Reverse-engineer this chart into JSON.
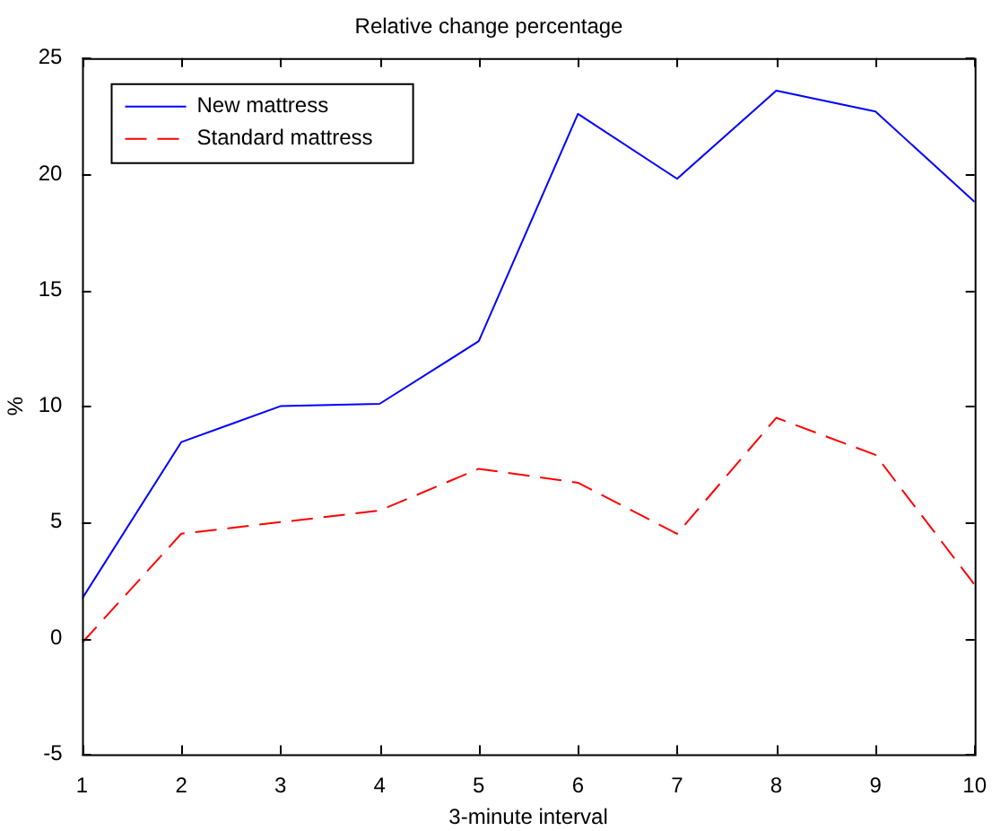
{
  "chart_data": {
    "type": "line",
    "title": "Relative change percentage",
    "xlabel": "3-minute interval",
    "ylabel": "%",
    "x": [
      1,
      2,
      3,
      4,
      5,
      6,
      7,
      8,
      9,
      10
    ],
    "series": [
      {
        "name": "New mattress",
        "color": "#0000ff",
        "line_style": "solid",
        "values": [
          1.7,
          8.45,
          10.0,
          10.1,
          12.8,
          22.6,
          19.8,
          23.6,
          22.7,
          18.8
        ]
      },
      {
        "name": "Standard mattress",
        "color": "#ff0000",
        "line_style": "dashed",
        "values": [
          -0.2,
          4.5,
          5.0,
          5.5,
          7.3,
          6.7,
          4.5,
          9.5,
          7.9,
          2.3
        ]
      }
    ],
    "xlim": [
      1,
      10
    ],
    "xticks": [
      1,
      2,
      3,
      4,
      5,
      6,
      7,
      8,
      9,
      10
    ],
    "ylim": [
      -5,
      25
    ],
    "yticks": [
      -5,
      0,
      5,
      10,
      15,
      20,
      25
    ],
    "grid": false,
    "legend": "top left",
    "marker": "none"
  }
}
